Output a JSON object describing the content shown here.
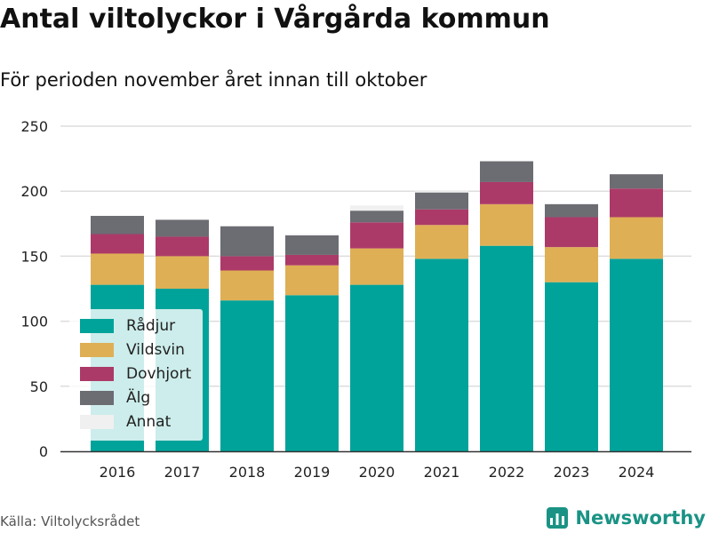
{
  "title": "Antal viltolyckor i Vårgårda kommun",
  "subtitle": "För perioden november året innan till oktober",
  "source": "Källa: Viltolycksrådet",
  "brand": "Newsworthy",
  "chart_data": {
    "type": "bar",
    "stacked": true,
    "categories": [
      "2016",
      "2017",
      "2018",
      "2019",
      "2020",
      "2021",
      "2022",
      "2023",
      "2024"
    ],
    "series": [
      {
        "name": "Rådjur",
        "color": "#00a39a",
        "values": [
          128,
          125,
          116,
          120,
          128,
          148,
          158,
          130,
          148
        ]
      },
      {
        "name": "Vildsvin",
        "color": "#dfaf55",
        "values": [
          24,
          25,
          23,
          23,
          28,
          26,
          32,
          27,
          32
        ]
      },
      {
        "name": "Dovhjort",
        "color": "#ac3a68",
        "values": [
          15,
          15,
          11,
          8,
          20,
          12,
          17,
          23,
          22
        ]
      },
      {
        "name": "Älg",
        "color": "#6c6c73",
        "values": [
          14,
          13,
          23,
          15,
          9,
          13,
          16,
          10,
          11
        ]
      },
      {
        "name": "Annat",
        "color": "#f0f0f0",
        "values": [
          0,
          0,
          0,
          1,
          4,
          1,
          0,
          0,
          0
        ]
      }
    ],
    "ylim": [
      0,
      250
    ],
    "yticks": [
      0,
      50,
      100,
      150,
      200,
      250
    ],
    "grid": true,
    "legend": "bottom-left"
  }
}
